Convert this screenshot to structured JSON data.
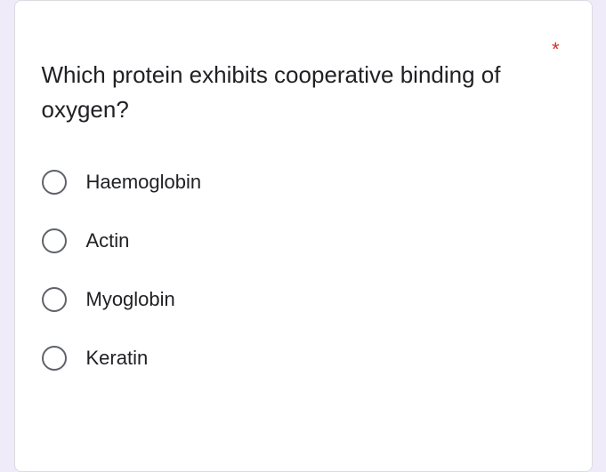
{
  "question": {
    "text": "Which protein exhibits cooperative binding of oxygen?",
    "required_indicator": "*",
    "required_color": "#d93025"
  },
  "options": [
    {
      "label": "Haemoglobin"
    },
    {
      "label": "Actin"
    },
    {
      "label": "Myoglobin"
    },
    {
      "label": "Keratin"
    }
  ],
  "styling": {
    "background_color": "#f0ebf8",
    "card_background": "#ffffff",
    "card_border": "#dadce0",
    "text_color": "#202124",
    "radio_border_color": "#5f6368",
    "question_fontsize": 26,
    "option_fontsize": 22
  }
}
